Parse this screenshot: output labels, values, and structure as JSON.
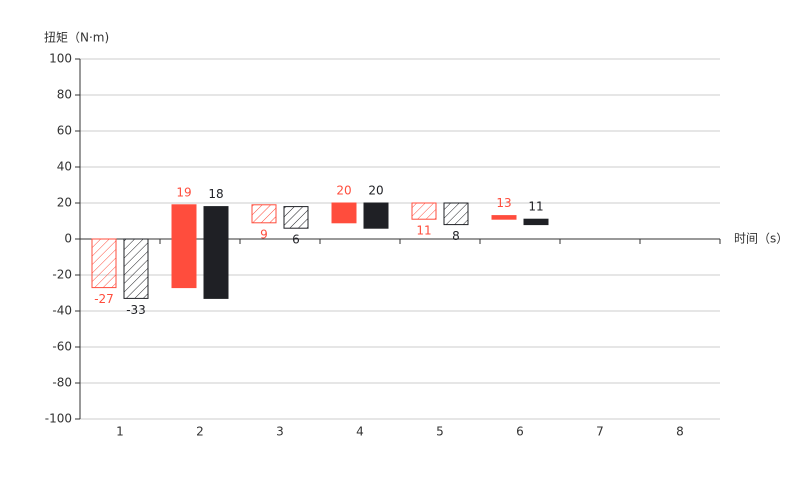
{
  "chart_data": {
    "type": "waterfall",
    "y_label": "扭矩（N·m)",
    "x_label": "时间（s）",
    "categories": [
      "1",
      "2",
      "3",
      "4",
      "5",
      "6",
      "7",
      "8"
    ],
    "series": [
      {
        "color": "#ff4d3d",
        "values": [
          -27,
          19,
          9,
          20,
          11,
          13,
          null,
          null
        ]
      },
      {
        "color": "#1f2025",
        "values": [
          -33,
          18,
          6,
          20,
          8,
          11,
          null,
          null
        ]
      }
    ],
    "ylim": [
      -100,
      100
    ],
    "yticks": [
      -100,
      -80,
      -60,
      -40,
      -20,
      0,
      20,
      40,
      60,
      80,
      100
    ],
    "grid": true
  }
}
